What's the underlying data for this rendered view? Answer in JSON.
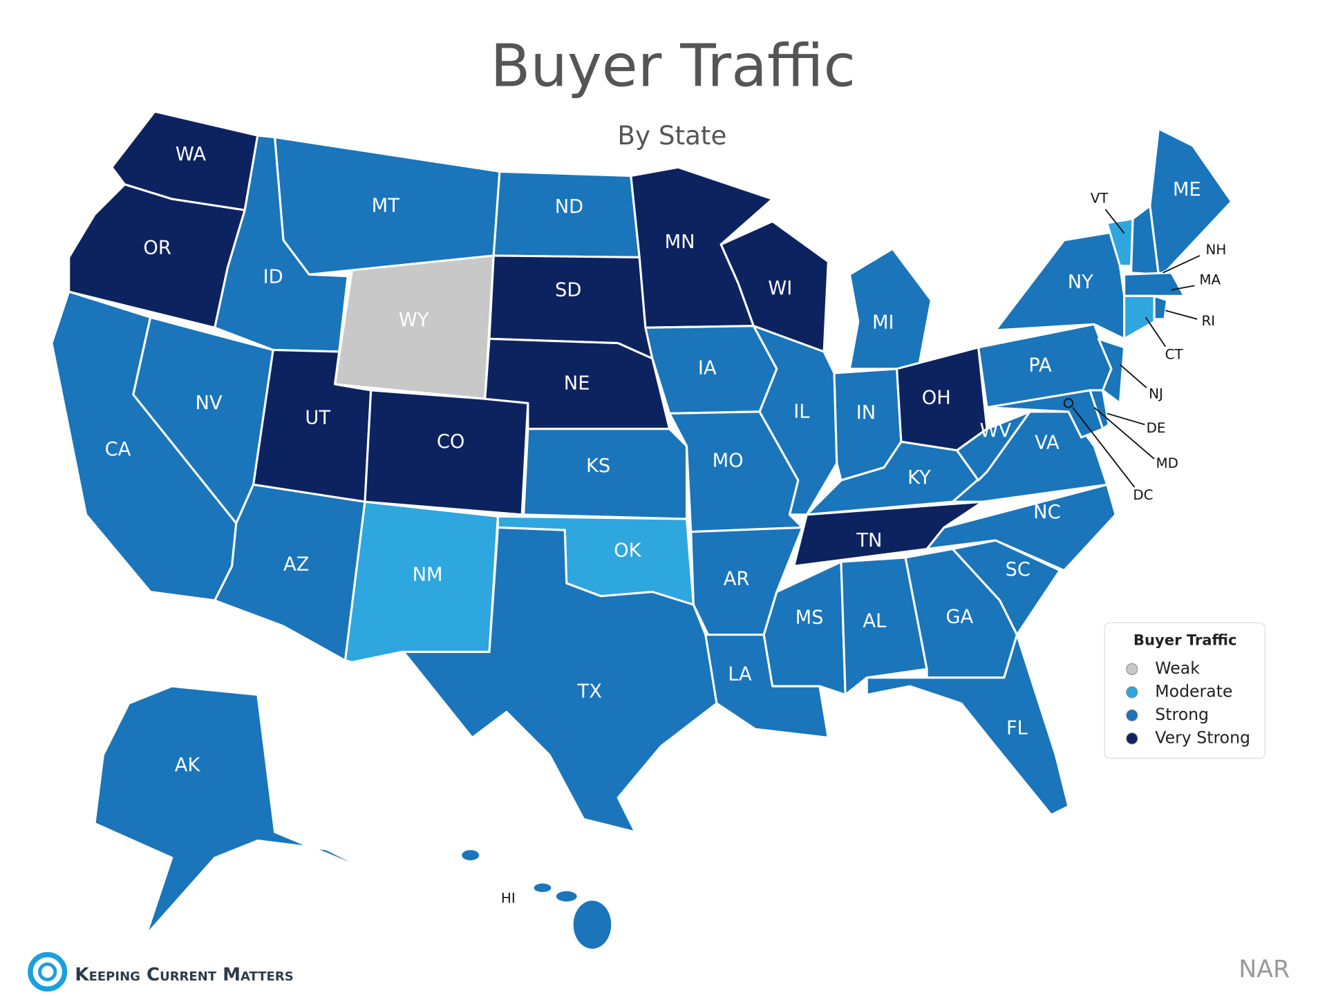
{
  "title": "Buyer Traffic",
  "subtitle": "By State",
  "legend": {
    "title": "Buyer Traffic",
    "items": [
      {
        "label": "Weak",
        "color": "#c8c8c8"
      },
      {
        "label": "Moderate",
        "color": "#2ea6de"
      },
      {
        "label": "Strong",
        "color": "#1a75bb"
      },
      {
        "label": "Very Strong",
        "color": "#0d2360"
      }
    ]
  },
  "states": [
    {
      "label": "WA",
      "level": "Very Strong"
    },
    {
      "label": "OR",
      "level": "Very Strong"
    },
    {
      "label": "CA",
      "level": "Strong"
    },
    {
      "label": "NV",
      "level": "Strong"
    },
    {
      "label": "ID",
      "level": "Strong"
    },
    {
      "label": "MT",
      "level": "Strong"
    },
    {
      "label": "WY",
      "level": "Weak"
    },
    {
      "label": "UT",
      "level": "Very Strong"
    },
    {
      "label": "CO",
      "level": "Very Strong"
    },
    {
      "label": "AZ",
      "level": "Strong"
    },
    {
      "label": "NM",
      "level": "Moderate"
    },
    {
      "label": "ND",
      "level": "Strong"
    },
    {
      "label": "SD",
      "level": "Very Strong"
    },
    {
      "label": "NE",
      "level": "Very Strong"
    },
    {
      "label": "KS",
      "level": "Strong"
    },
    {
      "label": "OK",
      "level": "Moderate"
    },
    {
      "label": "TX",
      "level": "Strong"
    },
    {
      "label": "MN",
      "level": "Very Strong"
    },
    {
      "label": "IA",
      "level": "Strong"
    },
    {
      "label": "MO",
      "level": "Strong"
    },
    {
      "label": "AR",
      "level": "Strong"
    },
    {
      "label": "LA",
      "level": "Strong"
    },
    {
      "label": "WI",
      "level": "Very Strong"
    },
    {
      "label": "IL",
      "level": "Strong"
    },
    {
      "label": "MI",
      "level": "Strong"
    },
    {
      "label": "IN",
      "level": "Strong"
    },
    {
      "label": "OH",
      "level": "Very Strong"
    },
    {
      "label": "KY",
      "level": "Strong"
    },
    {
      "label": "TN",
      "level": "Very Strong"
    },
    {
      "label": "MS",
      "level": "Strong"
    },
    {
      "label": "AL",
      "level": "Strong"
    },
    {
      "label": "GA",
      "level": "Strong"
    },
    {
      "label": "FL",
      "level": "Strong"
    },
    {
      "label": "SC",
      "level": "Strong"
    },
    {
      "label": "NC",
      "level": "Strong"
    },
    {
      "label": "VA",
      "level": "Strong"
    },
    {
      "label": "WV",
      "level": "Strong"
    },
    {
      "label": "PA",
      "level": "Strong"
    },
    {
      "label": "NY",
      "level": "Strong"
    },
    {
      "label": "ME",
      "level": "Strong"
    },
    {
      "label": "AK",
      "level": "Strong"
    },
    {
      "label": "VT",
      "level": "Moderate"
    },
    {
      "label": "NH",
      "level": "Strong"
    },
    {
      "label": "MA",
      "level": "Strong"
    },
    {
      "label": "RI",
      "level": "Strong"
    },
    {
      "label": "CT",
      "level": "Moderate"
    },
    {
      "label": "NJ",
      "level": "Strong"
    },
    {
      "label": "DE",
      "level": "Strong"
    },
    {
      "label": "MD",
      "level": "Strong"
    },
    {
      "label": "DC",
      "level": "Strong"
    },
    {
      "label": "HI",
      "level": "Strong"
    }
  ],
  "brand": "Keeping Current Matters",
  "source": "NAR"
}
